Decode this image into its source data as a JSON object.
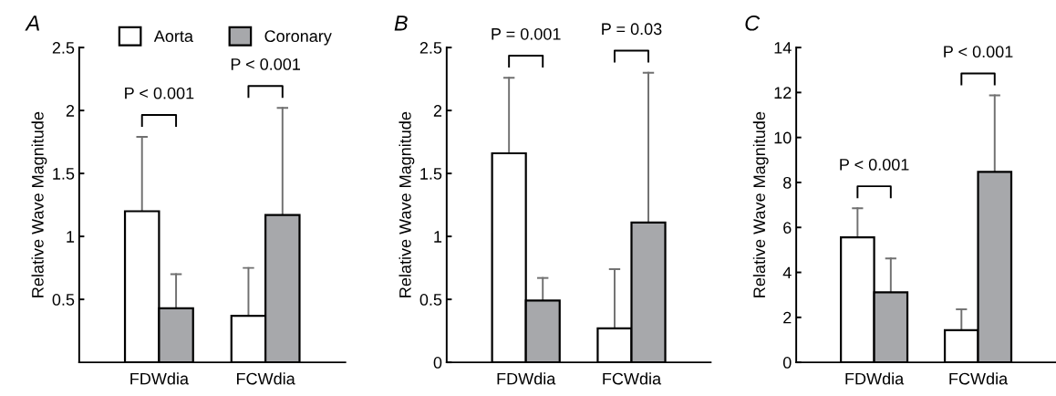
{
  "chart_data": [
    {
      "type": "bar",
      "title": "A",
      "ylabel": "Relative Wave Magnitude",
      "categories": [
        "FDWdia",
        "FCWdia"
      ],
      "legend": "top",
      "series": [
        {
          "name": "Aorta",
          "color": "#ffffff",
          "values": [
            1.2,
            0.37
          ],
          "errors": [
            0.59,
            0.38
          ]
        },
        {
          "name": "Coronary",
          "color": "#a7a8ab",
          "values": [
            0.43,
            1.17
          ],
          "errors": [
            0.27,
            0.85
          ]
        }
      ],
      "ylim": [
        0,
        2.5
      ],
      "yticks": [
        0.5,
        1,
        1.5,
        2,
        2.5
      ],
      "annotations": [
        "P < 0.001",
        "P < 0.001"
      ]
    },
    {
      "type": "bar",
      "title": "B",
      "ylabel": "Relative Wave Magnitude",
      "categories": [
        "FDWdia",
        "FCWdia"
      ],
      "series": [
        {
          "color": "#ffffff",
          "values": [
            1.66,
            0.27
          ],
          "errors": [
            0.6,
            0.47
          ]
        },
        {
          "color": "#a7a8ab",
          "values": [
            0.49,
            1.11
          ],
          "errors": [
            0.18,
            1.19
          ]
        }
      ],
      "ylim": [
        0,
        2.5
      ],
      "yticks": [
        0,
        0.5,
        1,
        1.5,
        2,
        2.5
      ],
      "annotations": [
        "P = 0.001",
        "P = 0.03"
      ]
    },
    {
      "type": "bar",
      "title": "C",
      "ylabel": "Relative Wave Magnitude",
      "categories": [
        "FDWdia",
        "FCWdia"
      ],
      "series": [
        {
          "color": "#ffffff",
          "values": [
            5.56,
            1.43
          ],
          "errors": [
            1.29,
            0.93
          ]
        },
        {
          "color": "#a7a8ab",
          "values": [
            3.11,
            8.47
          ],
          "errors": [
            1.51,
            3.4
          ]
        }
      ],
      "ylim": [
        0,
        14
      ],
      "yticks": [
        0,
        2,
        4,
        6,
        8,
        10,
        12,
        14
      ],
      "annotations": [
        "P < 0.001",
        "P < 0.001"
      ]
    }
  ]
}
